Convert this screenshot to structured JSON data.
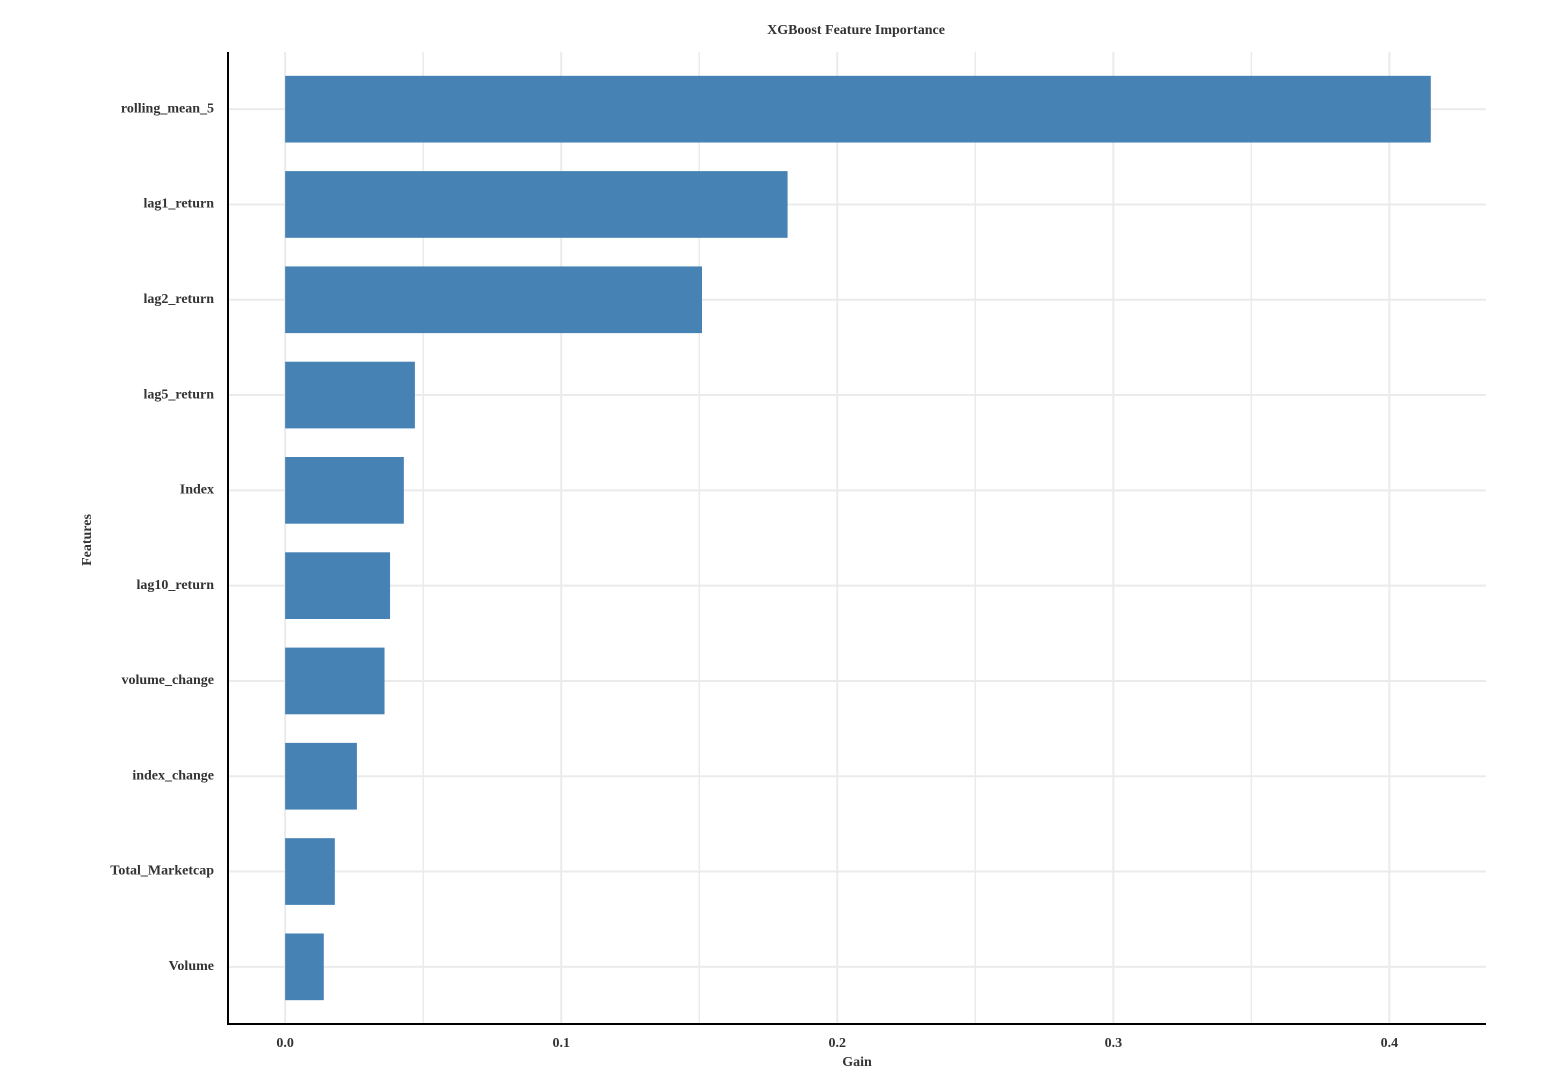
{
  "chart_data": {
    "type": "bar",
    "orientation": "horizontal",
    "title": "XGBoost Feature Importance",
    "x_label": "Gain",
    "y_label": "Features",
    "categories": [
      "rolling_mean_5",
      "lag1_return",
      "lag2_return",
      "lag5_return",
      "Index",
      "lag10_return",
      "volume_change",
      "index_change",
      "Total_Marketcap",
      "Volume"
    ],
    "values": [
      0.415,
      0.182,
      0.151,
      0.047,
      0.043,
      0.038,
      0.036,
      0.026,
      0.018,
      0.014
    ],
    "color": "#4682b4",
    "xlim": [
      -0.0207,
      0.435
    ],
    "xticks": [
      {
        "value": 0,
        "label": "0.0"
      },
      0.1,
      0.2,
      0.3,
      0.4
    ],
    "minor_xticks": [
      0.05,
      0.15,
      0.25,
      0.35
    ],
    "grid": true
  }
}
